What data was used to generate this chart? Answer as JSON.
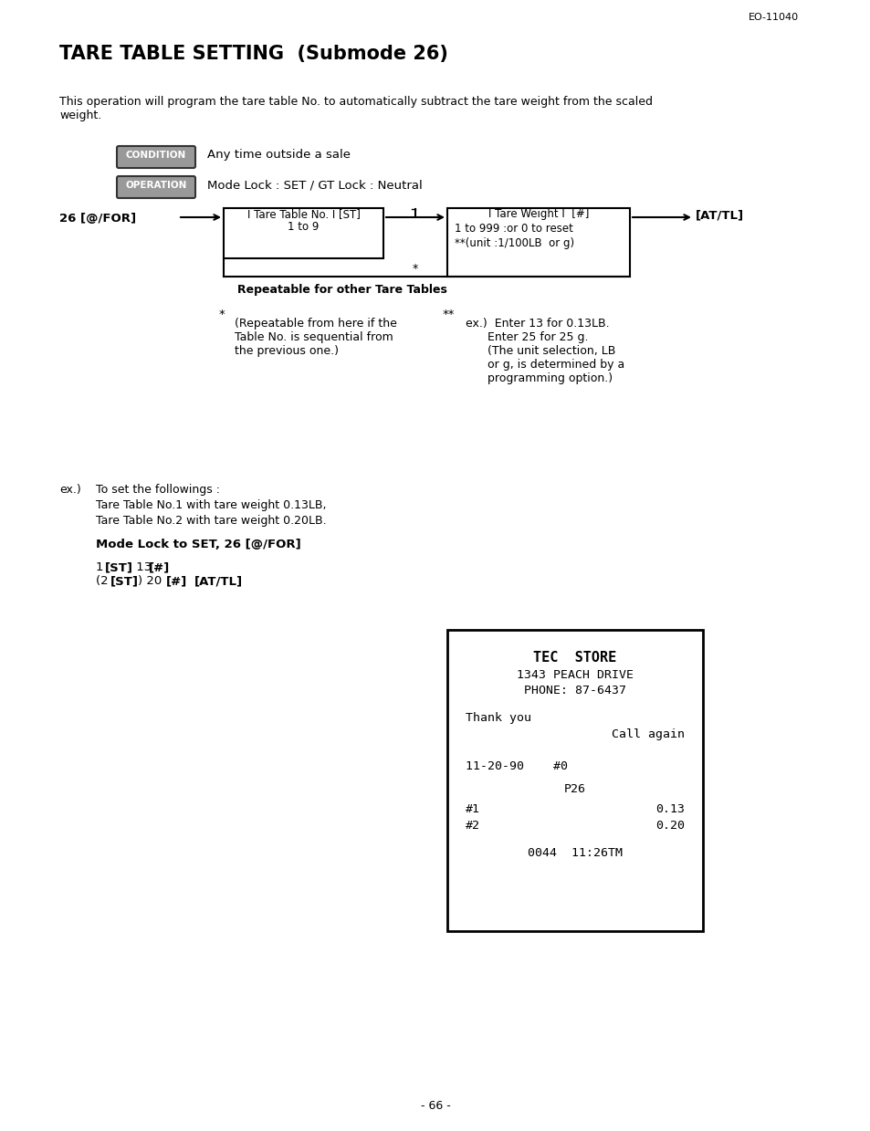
{
  "page_id": "EO-11040",
  "title": "TARE TABLE SETTING  (Submode 26)",
  "intro_text": "This operation will program the tare table No. to automatically subtract the tare weight from the scaled\nweight.",
  "condition_label": "CONDITION",
  "condition_text": "Any time outside a sale",
  "operation_label": "OPERATION",
  "operation_text": "Mode Lock : SET / GT Lock : Neutral",
  "flow_start": "26 [@/FOR]",
  "flow_box1_title": "I Tare Table No. I [ST]",
  "flow_box1_sub": "1 to 9",
  "flow_box2_title": "I Tare Weight I  [#]",
  "flow_box2_sub1": "1 to 999 :or 0 to reset",
  "flow_box2_sub2": "**(unit :1/100LB  or g)",
  "flow_end": "[AT/TL]",
  "flow_repeat_text": "Repeatable for other Tare Tables",
  "note_star_text": "(Repeatable from here if the\nTable No. is sequential from\nthe previous one.)",
  "note_dstar_label": "**",
  "note_dstar_ex": "ex.)  Enter 13 for 0.13LB.\n      Enter 25 for 25 g.\n      (The unit selection, LB\n      or g, is determined by a\n      programming option.)",
  "ex_label": "ex.)",
  "ex_text1": "To set the followings :",
  "ex_text2": "Tare Table No.1 with tare weight 0.13LB,",
  "ex_text3": "Tare Table No.2 with tare weight 0.20LB.",
  "ex_mode": "Mode Lock to SET, 26 [@/FOR]",
  "ex_keys1": "1 [ST] 13 [#]",
  "ex_keys2": "(2 [ST]) 20 [#] [AT/TL]",
  "receipt_lines": [
    {
      "text": "TEC  STORE",
      "bold": true,
      "indent": 0.5
    },
    {
      "text": "1343 PEACH DRIVE",
      "bold": false,
      "indent": 0.3
    },
    {
      "text": "PHONE: 87-6437",
      "bold": false,
      "indent": 0.35
    },
    {
      "text": "",
      "bold": false,
      "indent": 0
    },
    {
      "text": "Thank you",
      "bold": false,
      "indent": 0.05
    },
    {
      "text": "          Call again",
      "bold": false,
      "indent": 0
    },
    {
      "text": "",
      "bold": false,
      "indent": 0
    },
    {
      "text": "",
      "bold": false,
      "indent": 0
    },
    {
      "text": "11-20-90    #0",
      "bold": false,
      "indent": 0.05
    },
    {
      "text": "",
      "bold": false,
      "indent": 0
    },
    {
      "text": "        P26",
      "bold": false,
      "indent": 0
    },
    {
      "text": "#1                  0.13",
      "bold": false,
      "indent": 0.05
    },
    {
      "text": "#2                  0.20",
      "bold": false,
      "indent": 0.05
    },
    {
      "text": "",
      "bold": false,
      "indent": 0
    },
    {
      "text": "    0044  11:26TM",
      "bold": false,
      "indent": 0
    }
  ],
  "page_number": "- 66 -",
  "bg_color": "#ffffff",
  "text_color": "#000000"
}
